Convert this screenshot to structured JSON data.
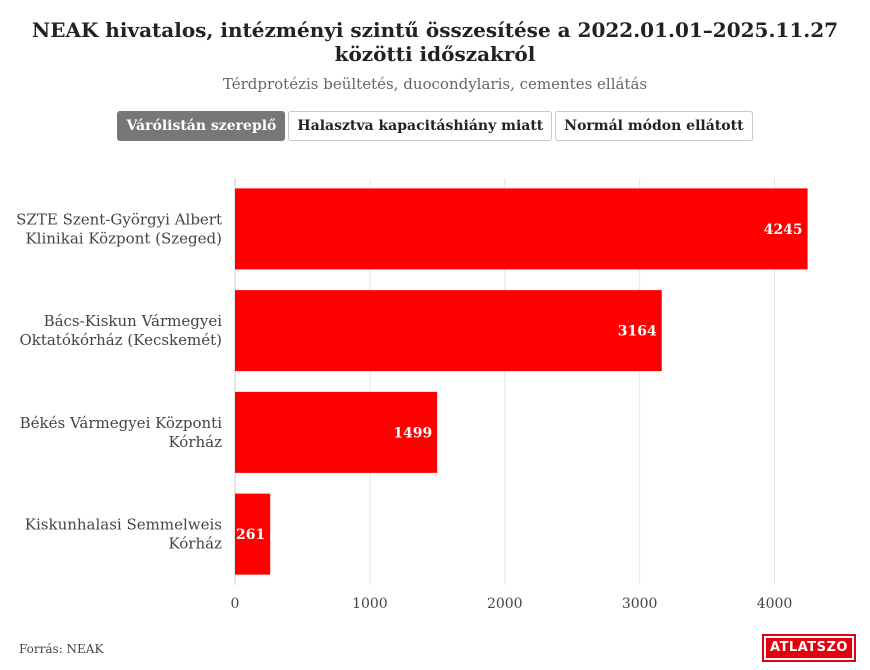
{
  "header": {
    "title": "NEAK hivatalos, intézményi szintű összesítése a 2022.01.01–2025.11.27 közötti időszakról",
    "subtitle": "Térdprotézis beültetés, duocondylaris, cementes ellátás"
  },
  "toggles": [
    {
      "label": "Várólistán szereplő",
      "active": true
    },
    {
      "label": "Halasztva kapacitáshiány miatt",
      "active": false
    },
    {
      "label": "Normál módon ellátott",
      "active": false
    }
  ],
  "chart_data": {
    "type": "bar",
    "orientation": "horizontal",
    "categories": [
      [
        "SZTE Szent-Györgyi Albert",
        "Klinikai Központ (Szeged)"
      ],
      [
        "Bács-Kiskun Vármegyei",
        "Oktatókórház (Kecskemét)"
      ],
      [
        "Békés Vármegyei Központi",
        "Kórház"
      ],
      [
        "Kiskunhalasi Semmelweis",
        "Kórház"
      ]
    ],
    "values": [
      4245,
      3164,
      1499,
      261
    ],
    "xlim": [
      0,
      4300
    ],
    "xticks": [
      "0",
      "1000",
      "2000",
      "3000",
      "4000"
    ],
    "grid": true,
    "bar_color": "#ff0000",
    "data_labels": true
  },
  "footer": {
    "source": "Forrás: NEAK",
    "logo_text": "ATLATSZO",
    "logo_color": "#e3000f"
  }
}
